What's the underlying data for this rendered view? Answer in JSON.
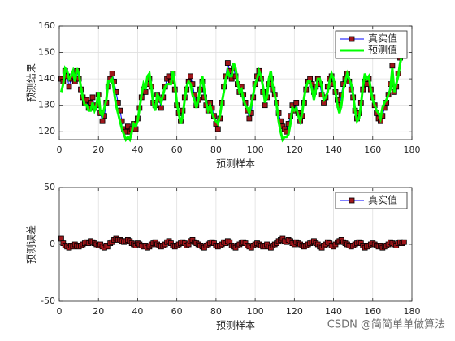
{
  "chart_data": [
    {
      "type": "line",
      "xlabel": "预测样本",
      "ylabel": "预测结果",
      "xlim": [
        0,
        180
      ],
      "xticks": [
        0,
        20,
        40,
        60,
        80,
        100,
        120,
        140,
        160,
        180
      ],
      "ylim": [
        117,
        160
      ],
      "yticks": [
        120,
        130,
        140,
        150,
        160
      ],
      "grid": true,
      "legend": "northeast",
      "x": [
        1,
        2,
        3,
        4,
        5,
        6,
        7,
        8,
        9,
        10,
        11,
        12,
        13,
        14,
        15,
        16,
        17,
        18,
        19,
        20,
        21,
        22,
        23,
        24,
        25,
        26,
        27,
        28,
        29,
        30,
        31,
        32,
        33,
        34,
        35,
        36,
        37,
        38,
        39,
        40,
        41,
        42,
        43,
        44,
        45,
        46,
        47,
        48,
        49,
        50,
        51,
        52,
        53,
        54,
        55,
        56,
        57,
        58,
        59,
        60,
        61,
        62,
        63,
        64,
        65,
        66,
        67,
        68,
        69,
        70,
        71,
        72,
        73,
        74,
        75,
        76,
        77,
        78,
        79,
        80,
        81,
        82,
        83,
        84,
        85,
        86,
        87,
        88,
        89,
        90,
        91,
        92,
        93,
        94,
        95,
        96,
        97,
        98,
        99,
        100,
        101,
        102,
        103,
        104,
        105,
        106,
        107,
        108,
        109,
        110,
        111,
        112,
        113,
        114,
        115,
        116,
        117,
        118,
        119,
        120,
        121,
        122,
        123,
        124,
        125,
        126,
        127,
        128,
        129,
        130,
        131,
        132,
        133,
        134,
        135,
        136,
        137,
        138,
        139,
        140,
        141,
        142,
        143,
        144,
        145,
        146,
        147,
        148,
        149,
        150,
        151,
        152,
        153,
        154,
        155,
        156,
        157,
        158,
        159,
        160,
        161,
        162,
        163,
        164,
        165,
        166,
        167,
        168,
        169,
        170,
        171,
        172,
        173,
        174,
        175,
        176
      ],
      "series": [
        {
          "name": "真实值",
          "color": "#0000ff",
          "marker_color": "#a0161b",
          "marker": "square",
          "line_width": 1,
          "values": [
            140,
            139,
            143,
            141,
            137,
            140,
            141,
            139,
            143,
            140,
            136,
            133,
            131,
            132,
            129,
            131,
            133,
            129,
            130,
            134,
            127,
            124,
            126,
            131,
            137,
            140,
            142,
            139,
            135,
            131,
            128,
            124,
            121,
            120,
            122,
            120,
            121,
            123,
            121,
            125,
            129,
            133,
            136,
            135,
            138,
            140,
            137,
            131,
            130,
            134,
            132,
            129,
            133,
            137,
            140,
            141,
            139,
            142,
            136,
            130,
            127,
            124,
            128,
            133,
            136,
            139,
            141,
            138,
            134,
            130,
            132,
            136,
            139,
            133,
            130,
            128,
            131,
            129,
            126,
            123,
            121,
            125,
            131,
            137,
            141,
            146,
            143,
            140,
            144,
            141,
            138,
            135,
            137,
            134,
            131,
            128,
            125,
            127,
            133,
            138,
            141,
            143,
            140,
            135,
            130,
            133,
            138,
            140,
            136,
            134,
            131,
            127,
            124,
            122,
            121,
            120,
            123,
            126,
            130,
            128,
            131,
            127,
            124,
            126,
            131,
            136,
            139,
            140,
            138,
            135,
            137,
            140,
            138,
            134,
            131,
            133,
            137,
            140,
            141,
            138,
            135,
            132,
            130,
            134,
            138,
            140,
            142,
            139,
            136,
            133,
            128,
            125,
            127,
            131,
            136,
            139,
            138,
            140,
            136,
            133,
            130,
            127,
            125,
            124,
            126,
            129,
            131,
            134,
            138,
            145,
            135,
            137,
            142,
            148,
            150,
            152
          ]
        },
        {
          "name": "预测值",
          "color": "#00ff00",
          "line_width": 3,
          "values": [
            135,
            138,
            144,
            143,
            140,
            141,
            143,
            139,
            144,
            142,
            137,
            133,
            130,
            130,
            128,
            128,
            131,
            128,
            130,
            135,
            127,
            126,
            129,
            132,
            139,
            139,
            140,
            135,
            130,
            127,
            124,
            121,
            119,
            117,
            118,
            117,
            120,
            123,
            122,
            124,
            129,
            134,
            138,
            136,
            141,
            142,
            137,
            130,
            128,
            134,
            133,
            131,
            134,
            137,
            138,
            138,
            138,
            143,
            138,
            131,
            127,
            123,
            126,
            132,
            137,
            139,
            138,
            134,
            132,
            129,
            132,
            137,
            141,
            136,
            131,
            128,
            130,
            127,
            125,
            124,
            123,
            126,
            131,
            135,
            140,
            143,
            141,
            141,
            146,
            144,
            139,
            135,
            136,
            132,
            130,
            129,
            127,
            130,
            134,
            138,
            140,
            143,
            141,
            137,
            131,
            133,
            140,
            143,
            137,
            134,
            130,
            124,
            120,
            117,
            118,
            118,
            119,
            123,
            129,
            128,
            129,
            126,
            124,
            127,
            133,
            137,
            139,
            139,
            136,
            132,
            136,
            140,
            140,
            137,
            132,
            133,
            135,
            139,
            142,
            140,
            135,
            130,
            127,
            130,
            136,
            139,
            142,
            140,
            138,
            134,
            128,
            124,
            125,
            130,
            137,
            142,
            140,
            141,
            136,
            132,
            130,
            128,
            127,
            125,
            129,
            131,
            132,
            134,
            136,
            144,
            135,
            138,
            141,
            146,
            149,
            150
          ]
        }
      ]
    },
    {
      "type": "line",
      "xlabel": "预测样本",
      "ylabel": "预测误差",
      "xlim": [
        0,
        180
      ],
      "xticks": [
        0,
        20,
        40,
        60,
        80,
        100,
        120,
        140,
        160,
        180
      ],
      "ylim": [
        -50,
        50
      ],
      "yticks": [
        -50,
        0,
        50
      ],
      "grid": true,
      "legend": "northeast",
      "x": [
        1,
        2,
        3,
        4,
        5,
        6,
        7,
        8,
        9,
        10,
        11,
        12,
        13,
        14,
        15,
        16,
        17,
        18,
        19,
        20,
        21,
        22,
        23,
        24,
        25,
        26,
        27,
        28,
        29,
        30,
        31,
        32,
        33,
        34,
        35,
        36,
        37,
        38,
        39,
        40,
        41,
        42,
        43,
        44,
        45,
        46,
        47,
        48,
        49,
        50,
        51,
        52,
        53,
        54,
        55,
        56,
        57,
        58,
        59,
        60,
        61,
        62,
        63,
        64,
        65,
        66,
        67,
        68,
        69,
        70,
        71,
        72,
        73,
        74,
        75,
        76,
        77,
        78,
        79,
        80,
        81,
        82,
        83,
        84,
        85,
        86,
        87,
        88,
        89,
        90,
        91,
        92,
        93,
        94,
        95,
        96,
        97,
        98,
        99,
        100,
        101,
        102,
        103,
        104,
        105,
        106,
        107,
        108,
        109,
        110,
        111,
        112,
        113,
        114,
        115,
        116,
        117,
        118,
        119,
        120,
        121,
        122,
        123,
        124,
        125,
        126,
        127,
        128,
        129,
        130,
        131,
        132,
        133,
        134,
        135,
        136,
        137,
        138,
        139,
        140,
        141,
        142,
        143,
        144,
        145,
        146,
        147,
        148,
        149,
        150,
        151,
        152,
        153,
        154,
        155,
        156,
        157,
        158,
        159,
        160,
        161,
        162,
        163,
        164,
        165,
        166,
        167,
        168,
        169,
        170,
        171,
        172,
        173,
        174,
        175,
        176
      ],
      "series": [
        {
          "name": "真实值",
          "color": "#0000ff",
          "marker_color": "#a0161b",
          "marker": "square",
          "line_width": 1,
          "values": [
            5,
            1,
            -1,
            -2,
            -3,
            -1,
            -2,
            0,
            -1,
            -2,
            -1,
            0,
            1,
            2,
            1,
            3,
            2,
            1,
            0,
            -1,
            0,
            -2,
            -3,
            -1,
            -2,
            1,
            2,
            4,
            5,
            4,
            4,
            3,
            2,
            3,
            4,
            3,
            1,
            0,
            -1,
            1,
            0,
            -1,
            -2,
            -1,
            -3,
            -2,
            0,
            1,
            2,
            0,
            -1,
            -2,
            -1,
            0,
            2,
            3,
            1,
            -1,
            -2,
            -1,
            0,
            1,
            2,
            1,
            -1,
            0,
            3,
            4,
            2,
            1,
            0,
            -1,
            -2,
            -3,
            -1,
            0,
            1,
            2,
            1,
            -1,
            -2,
            -1,
            0,
            2,
            1,
            3,
            2,
            -1,
            -2,
            -3,
            -1,
            0,
            1,
            2,
            1,
            -1,
            -2,
            -3,
            -1,
            0,
            1,
            0,
            -1,
            -2,
            -1,
            0,
            -2,
            -3,
            -1,
            0,
            1,
            3,
            4,
            5,
            3,
            2,
            4,
            3,
            1,
            0,
            2,
            1,
            0,
            -1,
            -2,
            -1,
            0,
            1,
            2,
            3,
            1,
            0,
            -2,
            -3,
            -1,
            0,
            2,
            1,
            -1,
            -2,
            0,
            2,
            3,
            4,
            2,
            1,
            0,
            -1,
            -2,
            -1,
            0,
            1,
            2,
            1,
            -1,
            -3,
            -2,
            -1,
            0,
            1,
            0,
            -1,
            -2,
            -1,
            -3,
            -2,
            -1,
            0,
            2,
            1,
            0,
            -1,
            1,
            2,
            1,
            2
          ]
        }
      ]
    }
  ],
  "watermark": "CSDN @简简单单做算法"
}
